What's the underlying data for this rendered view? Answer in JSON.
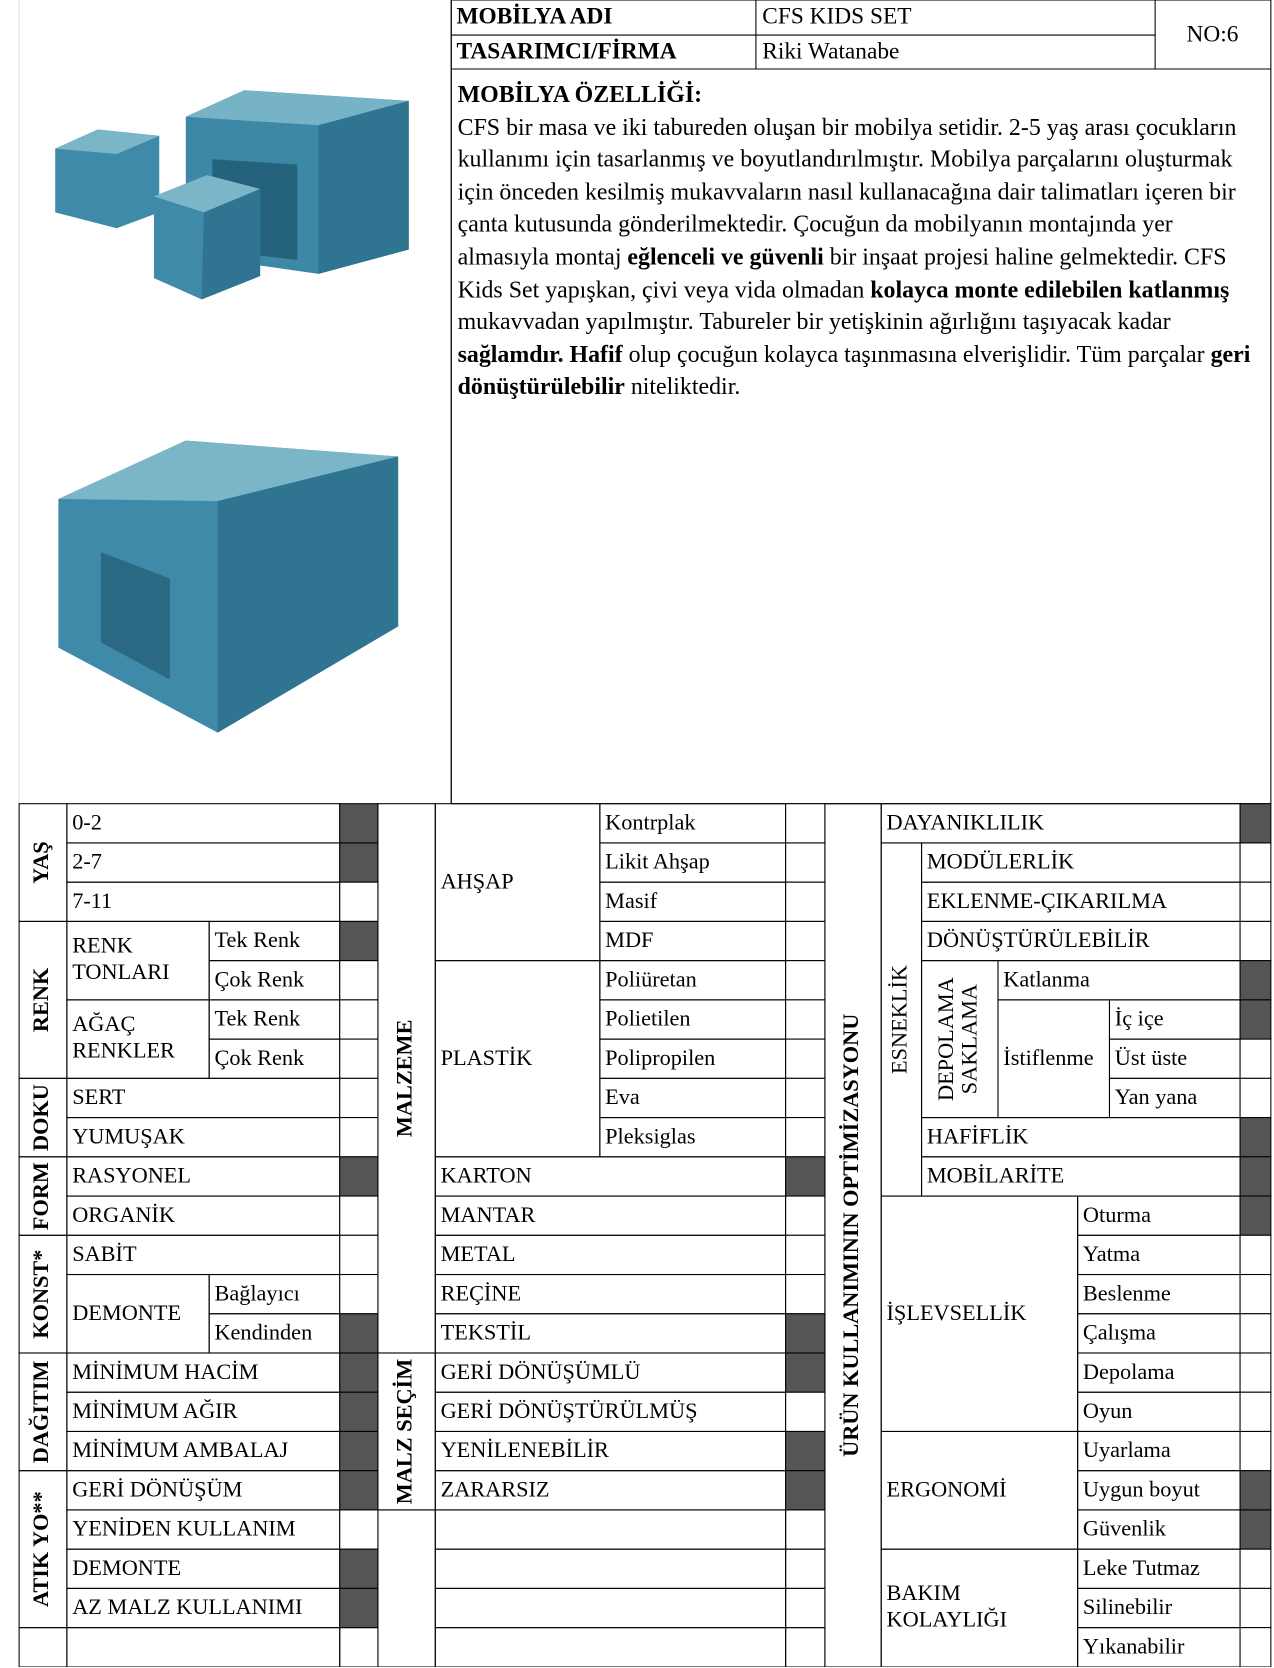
{
  "header": {
    "name_label": "MOBİLYA ADI",
    "name": "CFS KIDS SET",
    "designer_label": "TASARIMCI/FİRMA",
    "designer": "Riki Watanabe",
    "number": "NO:6"
  },
  "description": {
    "title": "MOBİLYA ÖZELLİĞİ:",
    "runs": [
      {
        "text": "CFS bir masa ve iki tabureden oluşan bir mobilya setidir. 2-5 yaş arası çocukların kullanımı için tasarlanmış ve boyutlandırılmıştır. Mobilya parçalarını oluşturmak için önceden kesilmiş mukavvaların nasıl kullanacağına dair talimatları içeren bir çanta kutusunda gönderilmektedir. Çocuğun da mobilyanın montajında yer almasıyla montaj ",
        "bold": false
      },
      {
        "text": "eğlenceli ve güvenli",
        "bold": true
      },
      {
        "text": " bir inşaat projesi haline gelmektedir. CFS Kids Set yapışkan, çivi veya vida olmadan ",
        "bold": false
      },
      {
        "text": "kolayca monte edilebilen katlanmış",
        "bold": true
      },
      {
        "text": " mukavvadan yapılmıştır. Tabureler bir yetişkinin ağırlığını taşıyacak kadar ",
        "bold": false
      },
      {
        "text": "sağlamdır. Hafif",
        "bold": true
      },
      {
        "text": " olup çocuğun kolayca taşınmasına elverişlidir.  Tüm parçalar ",
        "bold": false
      },
      {
        "text": "geri dönüştürülebilir",
        "bold": true
      },
      {
        "text": " niteliktedir.",
        "bold": false
      }
    ]
  },
  "table": {
    "yas": {
      "label": "YAŞ",
      "options": [
        {
          "text": "0-2",
          "checked": true
        },
        {
          "text": "2-7",
          "checked": true
        },
        {
          "text": "7-11",
          "checked": false
        }
      ]
    },
    "renk": {
      "label": "RENK",
      "subgroups": [
        {
          "label": [
            "RENK",
            "TONLARI"
          ],
          "options": [
            {
              "text": "Tek Renk",
              "checked": true
            },
            {
              "text": "Çok Renk",
              "checked": false
            }
          ]
        },
        {
          "label": [
            "AĞAÇ",
            "RENKLER"
          ],
          "options": [
            {
              "text": "Tek Renk",
              "checked": false
            },
            {
              "text": "Çok Renk",
              "checked": false
            }
          ]
        }
      ]
    },
    "doku": {
      "label": "DOKU",
      "options": [
        {
          "text": "SERT",
          "checked": false
        },
        {
          "text": "YUMUŞAK",
          "checked": false
        }
      ]
    },
    "form": {
      "label": "FORM",
      "options": [
        {
          "text": "RASYONEL",
          "checked": true
        },
        {
          "text": "ORGANİK",
          "checked": false
        }
      ]
    },
    "konst": {
      "label": "KONST*",
      "options": [
        {
          "text": "SABİT",
          "checked": false
        }
      ],
      "demonte": {
        "label": "DEMONTE",
        "options": [
          {
            "text": "Bağlayıcı",
            "checked": false
          },
          {
            "text": "Kendinden",
            "checked": true
          }
        ]
      }
    },
    "dagitim": {
      "label": "DAĞITIM",
      "options": [
        {
          "text": "MİNİMUM HACİM",
          "checked": true
        },
        {
          "text": "MİNİMUM AĞIR",
          "checked": true
        },
        {
          "text": "MİNİMUM AMBALAJ",
          "checked": true
        }
      ]
    },
    "atik": {
      "label": "ATIK YO**",
      "options": [
        {
          "text": "GERİ DÖNÜŞÜM",
          "checked": true
        },
        {
          "text": "YENİDEN KULLANIM",
          "checked": false
        },
        {
          "text": "DEMONTE",
          "checked": true
        },
        {
          "text": "AZ MALZ KULLANIMI",
          "checked": true
        }
      ]
    },
    "malzeme": {
      "label": "MALZEME",
      "ahsap": {
        "label": "AHŞAP",
        "options": [
          {
            "text": "Kontrplak",
            "checked": false
          },
          {
            "text": "Likit Ahşap",
            "checked": false
          },
          {
            "text": "Masif",
            "checked": false
          },
          {
            "text": "MDF",
            "checked": false
          }
        ]
      },
      "plastik": {
        "label": "PLASTİK",
        "options": [
          {
            "text": "Poliüretan",
            "checked": false
          },
          {
            "text": "Polietilen",
            "checked": false
          },
          {
            "text": "Polipropilen",
            "checked": false
          },
          {
            "text": "Eva",
            "checked": false
          },
          {
            "text": "Pleksiglas",
            "checked": false
          }
        ]
      },
      "others": [
        {
          "text": "KARTON",
          "checked": true
        },
        {
          "text": "MANTAR",
          "checked": false
        },
        {
          "text": "METAL",
          "checked": false
        },
        {
          "text": "REÇİNE",
          "checked": false
        },
        {
          "text": "TEKSTİL",
          "checked": true
        }
      ]
    },
    "malz_secim": {
      "label": "MALZ SEÇİM",
      "options": [
        {
          "text": "GERİ DÖNÜŞÜMLÜ",
          "checked": true
        },
        {
          "text": "GERİ DÖNÜŞTÜRÜLMÜŞ",
          "checked": false
        },
        {
          "text": "YENİLENEBİLİR",
          "checked": true
        },
        {
          "text": "ZARARSIZ",
          "checked": true
        }
      ]
    },
    "urun": {
      "label": "ÜRÜN KULLANIMININ OPTİMİZASYONU",
      "dayaniklilik": {
        "text": "DAYANIKLILIK",
        "checked": true
      },
      "esneklik": {
        "label": "ESNEKLİK",
        "options": [
          {
            "text": "MODÜLERLİK",
            "checked": false
          },
          {
            "text": "EKLENME-ÇIKARILMA",
            "checked": false
          },
          {
            "text": "DÖNÜŞTÜRÜLEBİLİR",
            "checked": false
          }
        ],
        "depolama": {
          "label": [
            "DEPOLAMA",
            "SAKLAMA"
          ],
          "katlanma": {
            "text": "Katlanma",
            "checked": true
          },
          "istiflenme": {
            "label": "İstiflenme",
            "options": [
              {
                "text": "İç içe",
                "checked": true
              },
              {
                "text": "Üst üste",
                "checked": false
              },
              {
                "text": "Yan yana",
                "checked": false
              }
            ]
          }
        },
        "after": [
          {
            "text": "HAFİFLİK",
            "checked": true
          },
          {
            "text": "MOBİLARİTE",
            "checked": true
          }
        ]
      },
      "islevsellik": {
        "label": "İŞLEVSELLİK",
        "options": [
          {
            "text": "Oturma",
            "checked": true
          },
          {
            "text": "Yatma",
            "checked": false
          },
          {
            "text": "Beslenme",
            "checked": false
          },
          {
            "text": "Çalışma",
            "checked": false
          },
          {
            "text": "Depolama",
            "checked": false
          },
          {
            "text": "Oyun",
            "checked": false
          }
        ]
      },
      "ergonomi": {
        "label": "ERGONOMİ",
        "options": [
          {
            "text": "Uyarlama",
            "checked": false
          },
          {
            "text": "Uygun boyut",
            "checked": true
          },
          {
            "text": "Güvenlik",
            "checked": true
          }
        ]
      },
      "bakim": {
        "label": [
          "BAKIM",
          "KOLAYLIĞI"
        ],
        "options": [
          {
            "text": "Leke Tutmaz",
            "checked": false
          },
          {
            "text": "Silinebilir",
            "checked": false
          },
          {
            "text": "Yıkanabilir",
            "checked": false
          }
        ]
      }
    }
  }
}
